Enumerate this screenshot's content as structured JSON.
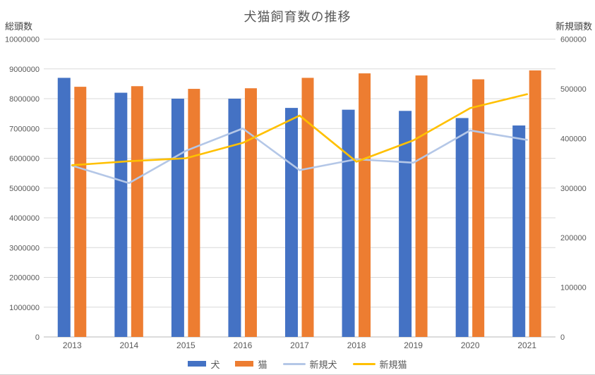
{
  "chart_data": {
    "type": "combo",
    "title": "犬猫飼育数の推移",
    "categories": [
      "2013",
      "2014",
      "2015",
      "2016",
      "2017",
      "2018",
      "2019",
      "2020",
      "2021"
    ],
    "left_axis": {
      "label": "総頭数",
      "min": 0,
      "max": 10000000,
      "step": 1000000
    },
    "right_axis": {
      "label": "新規頭数",
      "min": 0,
      "max": 600000,
      "step": 100000
    },
    "grid": true,
    "legend_position": "bottom",
    "series": [
      {
        "name": "犬",
        "key": "dog",
        "type": "bar",
        "axis": "left",
        "color": "#4472C4",
        "values": [
          8700000,
          8200000,
          8000000,
          8000000,
          7690000,
          7630000,
          7590000,
          7350000,
          7100000
        ]
      },
      {
        "name": "猫",
        "key": "cat",
        "type": "bar",
        "axis": "left",
        "color": "#ED7D31",
        "values": [
          8400000,
          8420000,
          8330000,
          8350000,
          8700000,
          8850000,
          8780000,
          8650000,
          8950000
        ]
      },
      {
        "name": "新規犬",
        "key": "new-dog",
        "type": "line",
        "axis": "right",
        "color": "#B4C7E7",
        "values": [
          345000,
          310000,
          375000,
          420000,
          336000,
          358000,
          351000,
          416000,
          397000
        ]
      },
      {
        "name": "新規猫",
        "key": "new-cat",
        "type": "line",
        "axis": "right",
        "color": "#FFC000",
        "values": [
          346000,
          354000,
          360000,
          391000,
          446000,
          353000,
          396000,
          461000,
          489000
        ]
      }
    ]
  }
}
